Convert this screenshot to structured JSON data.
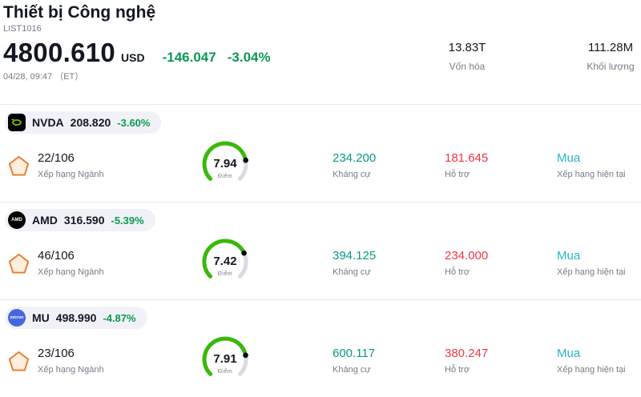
{
  "header": {
    "title": "Thiết bị Công nghệ",
    "list_id": "LIST1016",
    "price": "4800.610",
    "currency": "USD",
    "change": "-146.047",
    "change_pct": "-3.04%",
    "datetime": "04/28, 09:47 （ET）",
    "stats": [
      {
        "value": "13.83T",
        "label": "Vốn hóa"
      },
      {
        "value": "111.28M",
        "label": "Khối lượng"
      }
    ]
  },
  "labels": {
    "rank": "Xếp hạng Ngành",
    "score": "Điểm",
    "resistance": "Kháng cự",
    "support": "Hỗ trợ",
    "rating": "Xếp hạng hiện tại"
  },
  "colors": {
    "gray": "#787b86",
    "border": "#e4e7ee",
    "pill": "#f0f2f7",
    "change": "#0a9950",
    "res": "#089981",
    "sup": "#f23645",
    "rating": "#23b6c7",
    "gauge": "#38b908",
    "track": "#d8dbe2"
  },
  "chart_data": [
    {
      "type": "gauge",
      "ticker": "NVDA",
      "value": 7.94,
      "range": [
        0,
        10
      ],
      "unit": "Điểm"
    },
    {
      "type": "gauge",
      "ticker": "AMD",
      "value": 7.42,
      "range": [
        0,
        10
      ],
      "unit": "Điểm"
    },
    {
      "type": "gauge",
      "ticker": "MU",
      "value": 7.91,
      "range": [
        0,
        10
      ],
      "unit": "Điểm"
    }
  ],
  "stocks": [
    {
      "ticker": "NVDA",
      "price": "208.820",
      "change_pct": "-3.60%",
      "rank": "22/106",
      "score": "7.94",
      "resistance": "234.200",
      "support": "181.645",
      "rating": "Mua",
      "icon": {
        "type": "nvda",
        "bg": "#000000",
        "shape": "square",
        "text": "",
        "font_size": "6px",
        "italic": false
      }
    },
    {
      "ticker": "AMD",
      "price": "316.590",
      "change_pct": "-5.39%",
      "rank": "46/106",
      "score": "7.42",
      "resistance": "394.125",
      "support": "234.000",
      "rating": "Mua",
      "icon": {
        "type": "text",
        "bg": "#000000",
        "shape": "circle",
        "text": "AMD",
        "font_size": "6px",
        "italic": false
      }
    },
    {
      "ticker": "MU",
      "price": "498.990",
      "change_pct": "-4.87%",
      "rank": "23/106",
      "score": "7.91",
      "resistance": "600.117",
      "support": "380.247",
      "rating": "Mua",
      "icon": {
        "type": "text",
        "bg": "#4666e0",
        "shape": "circle",
        "text": "micron",
        "font_size": "5px",
        "italic": true
      }
    }
  ]
}
